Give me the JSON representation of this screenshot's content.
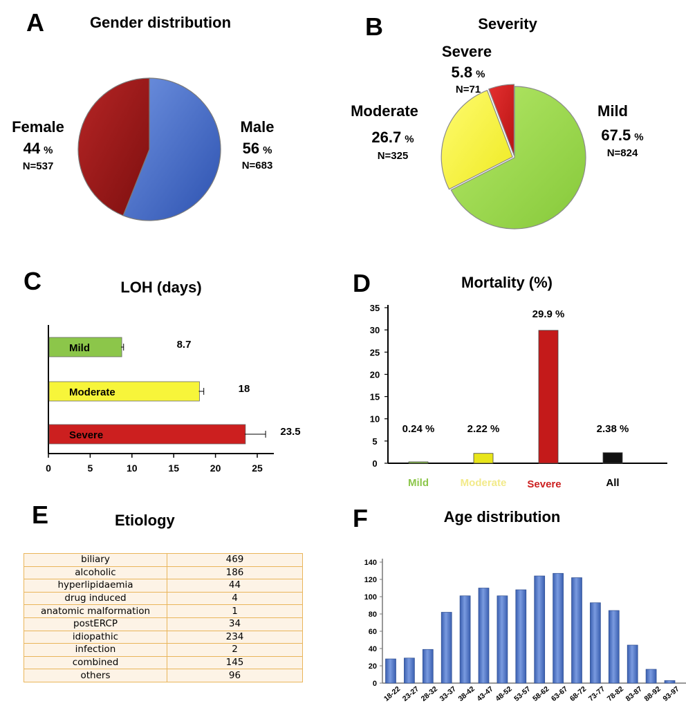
{
  "panels": {
    "A": {
      "letter": "A",
      "title": "Gender distribution",
      "slices": [
        {
          "label": "Male",
          "percent_value": "56",
          "percent_sign": "%",
          "n": "N=683",
          "value": 56,
          "color": "#3e67c9"
        },
        {
          "label": "Female",
          "percent_value": "44",
          "percent_sign": "%",
          "n": "N=537",
          "value": 44,
          "color": "#a31a1a"
        }
      ]
    },
    "B": {
      "letter": "B",
      "title": "Severity",
      "slices": [
        {
          "label": "Mild",
          "percent_value": "67.5",
          "percent_sign": "%",
          "n": "N=824",
          "value": 67.5,
          "color": "#9bd84a"
        },
        {
          "label": "Moderate",
          "percent_value": "26.7",
          "percent_sign": "%",
          "n": "N=325",
          "value": 26.7,
          "color": "#f8f542"
        },
        {
          "label": "Severe",
          "percent_value": "5.8",
          "percent_sign": "%",
          "n": "N=71",
          "value": 5.8,
          "color": "#d11d1d"
        }
      ]
    },
    "C": {
      "letter": "C"
    },
    "D": {
      "letter": "D"
    },
    "E": {
      "letter": "E",
      "title": "Etiology"
    },
    "F": {
      "letter": "F"
    }
  },
  "chart_data": [
    {
      "type": "pie",
      "title": "Gender distribution",
      "categories": [
        "Male",
        "Female"
      ],
      "values": [
        56,
        44
      ],
      "counts": [
        683,
        537
      ]
    },
    {
      "type": "pie",
      "title": "Severity",
      "categories": [
        "Mild",
        "Moderate",
        "Severe"
      ],
      "values": [
        67.5,
        26.7,
        5.8
      ],
      "counts": [
        824,
        325,
        71
      ]
    },
    {
      "type": "bar",
      "orientation": "horizontal",
      "title": "LOH (days)",
      "categories": [
        "Mild",
        "Moderate",
        "Severe"
      ],
      "values": [
        8.7,
        18,
        23.5
      ],
      "value_labels": [
        "8.7",
        "18",
        "23.5"
      ],
      "error": [
        0.3,
        0.6,
        2.5
      ],
      "colors": [
        "#8cc64a",
        "#f7f53a",
        "#cc1f1f"
      ],
      "xlim": [
        0,
        25
      ],
      "x_ticks": [
        "0",
        "5",
        "10",
        "15",
        "20",
        "25"
      ]
    },
    {
      "type": "bar",
      "title": "Mortality (%)",
      "categories": [
        "Mild",
        "Moderate",
        "Severe",
        "All"
      ],
      "category_colors": [
        "#8cc64a",
        "#f2ea8a",
        "#cc1f1f",
        "#000000"
      ],
      "values": [
        0.24,
        2.22,
        29.9,
        2.38
      ],
      "value_labels": [
        "0.24 %",
        "2.22 %",
        "29.9 %",
        "2.38 %"
      ],
      "bar_colors": [
        "#8cc64a",
        "#e8e51a",
        "#c41a1a",
        "#111111"
      ],
      "ylim": [
        0,
        35
      ],
      "y_ticks": [
        "0",
        "5",
        "10",
        "15",
        "20",
        "25",
        "30",
        "35"
      ]
    },
    {
      "type": "table",
      "title": "Etiology",
      "rows": [
        [
          "biliary",
          "469"
        ],
        [
          "alcoholic",
          "186"
        ],
        [
          "hyperlipidaemia",
          "44"
        ],
        [
          "drug induced",
          "4"
        ],
        [
          "anatomic malformation",
          "1"
        ],
        [
          "postERCP",
          "34"
        ],
        [
          "idiopathic",
          "234"
        ],
        [
          "infection",
          "2"
        ],
        [
          "combined",
          "145"
        ],
        [
          "others",
          "96"
        ]
      ]
    },
    {
      "type": "bar",
      "title": "Age distribution",
      "categories": [
        "18-22",
        "23-27",
        "28-32",
        "33-37",
        "38-42",
        "43-47",
        "48-52",
        "53-57",
        "58-62",
        "63-67",
        "68-72",
        "73-77",
        "78-82",
        "83-87",
        "88-92",
        "93-97"
      ],
      "values": [
        28,
        29,
        39,
        82,
        101,
        110,
        101,
        108,
        124,
        127,
        122,
        93,
        84,
        44,
        16,
        3
      ],
      "ylim": [
        0,
        140
      ],
      "y_ticks": [
        "0",
        "20",
        "40",
        "60",
        "80",
        "100",
        "120",
        "140"
      ],
      "bar_color": "#4f78c8"
    }
  ]
}
